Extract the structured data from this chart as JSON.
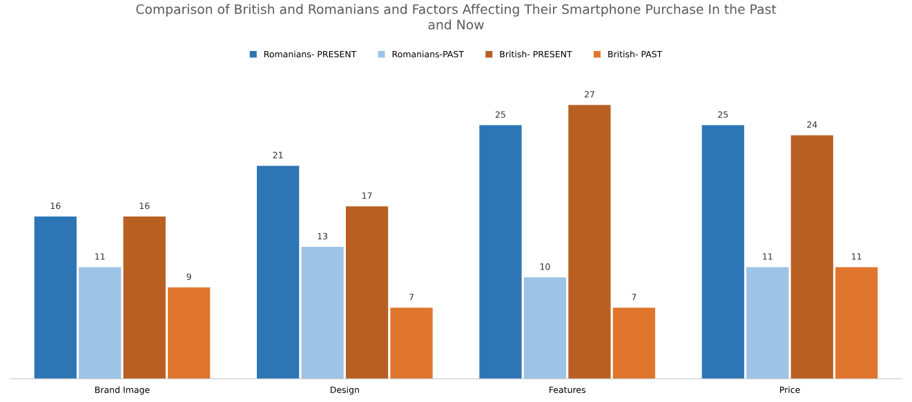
{
  "chart_data": {
    "type": "bar",
    "title": "Comparison of British and Romanians and Factors Affecting Their Smartphone Purchase In the Past\nand Now",
    "categories": [
      "Brand Image",
      "Design",
      "Features",
      "Price"
    ],
    "series": [
      {
        "name": "Romanians- PRESENT",
        "color": "#2e75b6",
        "values": [
          16,
          21,
          25,
          25
        ]
      },
      {
        "name": "Romanians-PAST",
        "color": "#9dc3e6",
        "values": [
          11,
          13,
          10,
          11
        ]
      },
      {
        "name": "British- PRESENT",
        "color": "#b85f22",
        "values": [
          16,
          17,
          27,
          24
        ]
      },
      {
        "name": "British- PAST",
        "color": "#e0752d",
        "values": [
          9,
          7,
          7,
          11
        ]
      }
    ],
    "data_labels": true,
    "legend": "top",
    "grid": false
  }
}
